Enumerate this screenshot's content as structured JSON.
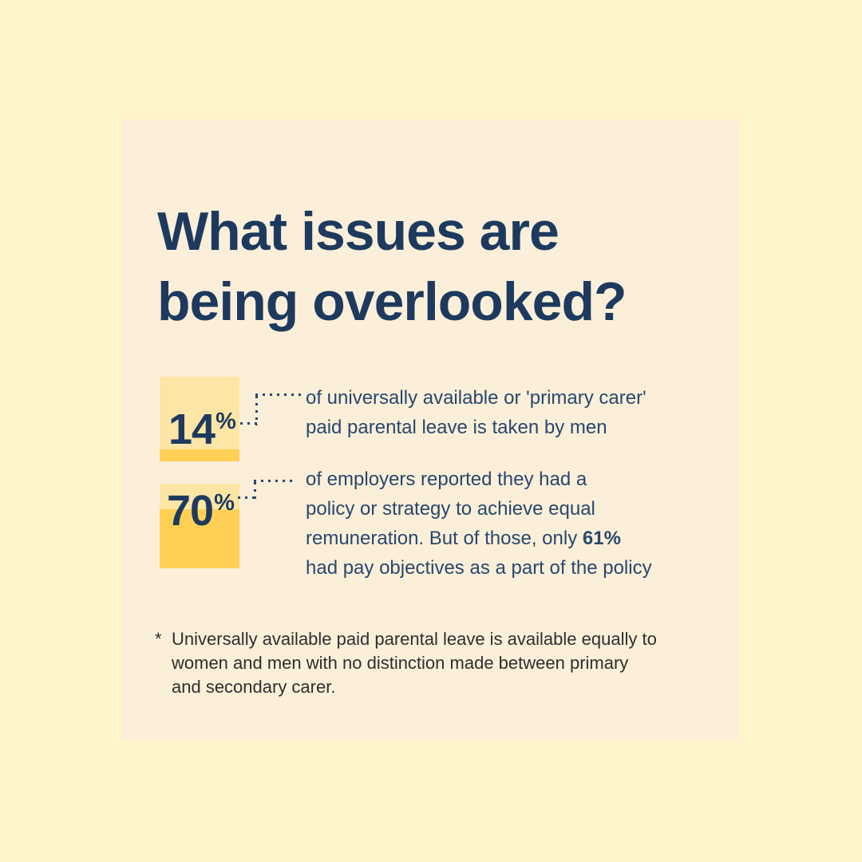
{
  "colors": {
    "canvas": "#FEF5CB",
    "panel": "#FCEFD9",
    "heading": "#1D3A5E",
    "body_text": "#27486D",
    "bar_light": "#FDE5A6",
    "bar_gold": "#FFD053",
    "footnote_text": "#2E2E2E"
  },
  "title": {
    "line1": "What issues are",
    "line2": "being overlooked?"
  },
  "stats": [
    {
      "value": "14",
      "unit": "%",
      "percent": 14,
      "lines": [
        "of universally available or 'primary carer'",
        "paid parental leave is taken by men"
      ]
    },
    {
      "value": "70",
      "unit": "%",
      "percent": 70,
      "lines": [
        "of employers reported they had a",
        "policy or strategy to achieve equal",
        "remuneration. But of those, only ",
        "had pay objectives as a part of the policy"
      ],
      "bold_inline": "61%"
    }
  ],
  "footnote": {
    "marker": "*",
    "lines": [
      "Universally available paid parental leave is available equally to",
      "women and men with no distinction made between primary",
      "and secondary carer."
    ]
  },
  "chart_data": {
    "type": "bar",
    "title": "What issues are being overlooked?",
    "categories": [
      "universally available or 'primary carer' paid parental leave taken by men",
      "employers reporting a policy or strategy to achieve equal remuneration"
    ],
    "values": [
      14,
      70
    ],
    "unit": "%",
    "annotation": "Of those with a policy, only 61% had pay objectives as a part of the policy",
    "ylim": [
      0,
      100
    ],
    "legend": false,
    "grid": false
  }
}
